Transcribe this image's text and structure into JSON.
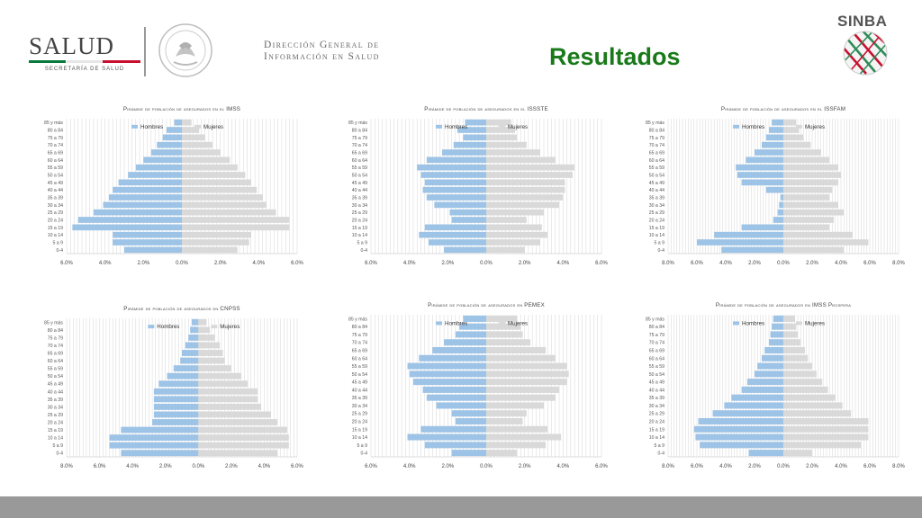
{
  "header": {
    "salud_logo_text": "SALUD",
    "salud_logo_subtext": "SECRETARÍA DE SALUD",
    "dgis_line1": "Dirección General de",
    "dgis_line2": "Información en Salud",
    "page_title": "Resultados",
    "sinba_label": "SINBA"
  },
  "colors": {
    "hombres": "#9dc3e6",
    "mujeres": "#d9d9d9",
    "title_green": "#1a7a1a",
    "footer": "#999999"
  },
  "chart_data": [
    {
      "type": "bar",
      "orientation": "horizontal-pyramid",
      "title": "Pirámide de población de asegurados en el IMSS",
      "categories": [
        "85 y más",
        "80 a 84",
        "75 a 79",
        "70 a 74",
        "65 a 69",
        "60 a 64",
        "55 a 59",
        "50 a 54",
        "45 a 49",
        "40 a 44",
        "35 a 39",
        "30 a 34",
        "25 a 29",
        "20 a 24",
        "15 a 19",
        "10 a 14",
        "5 a 9",
        "0-4"
      ],
      "series": [
        {
          "name": "Hombres",
          "values": [
            0.4,
            0.8,
            1.0,
            1.3,
            1.6,
            2.0,
            2.4,
            2.8,
            3.3,
            3.6,
            3.8,
            4.1,
            4.6,
            5.4,
            5.7,
            3.6,
            3.6,
            3.0
          ]
        },
        {
          "name": "Mujeres",
          "values": [
            0.5,
            0.9,
            1.2,
            1.6,
            2.0,
            2.5,
            2.9,
            3.3,
            3.6,
            3.9,
            4.2,
            4.4,
            4.9,
            5.6,
            5.6,
            3.6,
            3.5,
            2.9
          ]
        }
      ],
      "xlim": [
        -6,
        6
      ],
      "tick_labels": [
        "6.0%",
        "4.0%",
        "2.0%",
        "0.0%",
        "2.0%",
        "4.0%",
        "6.0%"
      ],
      "legend": "top-center"
    },
    {
      "type": "bar",
      "orientation": "horizontal-pyramid",
      "title": "Pirámide de población de asegurados en el ISSSTE",
      "categories": [
        "85 y más",
        "80 a 84",
        "75 a 79",
        "70 a 74",
        "65 a 69",
        "60 a 64",
        "55 a 59",
        "50 a 54",
        "45 a 49",
        "40 a 44",
        "35 a 39",
        "30 a 34",
        "25 a 29",
        "20 a 24",
        "15 a 19",
        "10 a 14",
        "5 a 9",
        "0-4"
      ],
      "series": [
        {
          "name": "Hombres",
          "values": [
            1.1,
            1.5,
            1.2,
            1.7,
            2.3,
            3.1,
            3.6,
            3.4,
            3.2,
            3.3,
            3.1,
            2.7,
            1.9,
            1.8,
            3.2,
            3.5,
            3.0,
            2.2
          ]
        },
        {
          "name": "Mujeres",
          "values": [
            1.3,
            1.5,
            1.6,
            2.1,
            2.8,
            3.6,
            4.6,
            4.5,
            4.1,
            4.1,
            4.0,
            3.8,
            3.0,
            2.1,
            2.9,
            3.2,
            2.8,
            2.0
          ]
        }
      ],
      "xlim": [
        -6,
        6
      ],
      "tick_labels": [
        "6.0%",
        "4.0%",
        "2.0%",
        "0.0%",
        "2.0%",
        "4.0%",
        "6.0%"
      ],
      "legend": "top-center"
    },
    {
      "type": "bar",
      "orientation": "horizontal-pyramid",
      "title": "Pirámide de población de asegurados en el ISSFAM",
      "categories": [
        "85 y más",
        "80 a 84",
        "75 a 79",
        "70 a 74",
        "65 a 69",
        "60 a 64",
        "55 a 59",
        "50 a 54",
        "45 a 49",
        "40 a 44",
        "35 a 39",
        "30 a 34",
        "25 a 29",
        "20 a 24",
        "15 a 19",
        "10 a 14",
        "5 a 9",
        "0-4"
      ],
      "series": [
        {
          "name": "Hombres",
          "values": [
            0.8,
            1.0,
            1.2,
            1.5,
            2.0,
            2.6,
            3.3,
            3.2,
            2.9,
            1.2,
            0.2,
            0.3,
            0.4,
            0.7,
            2.9,
            4.8,
            6.0,
            4.3
          ]
        },
        {
          "name": "Mujeres",
          "values": [
            0.9,
            1.1,
            1.4,
            1.9,
            2.6,
            3.2,
            3.8,
            4.0,
            3.8,
            3.4,
            3.2,
            3.8,
            4.2,
            3.5,
            3.2,
            4.8,
            5.9,
            4.2
          ]
        }
      ],
      "xlim": [
        -8,
        8
      ],
      "tick_labels": [
        "8.0%",
        "6.0%",
        "4.0%",
        "2.0%",
        "0.0%",
        "2.0%",
        "4.0%",
        "6.0%",
        "8.0%"
      ],
      "legend": "top-center"
    },
    {
      "type": "bar",
      "orientation": "horizontal-pyramid",
      "title": "Pirámide de población de asegurados en CNPSS",
      "categories": [
        "85 y más",
        "80 a 84",
        "75 a 79",
        "70 a 74",
        "65 a 69",
        "60 a 64",
        "55 a 59",
        "50 a 54",
        "45 a 49",
        "40 a 44",
        "35 a 39",
        "30 a 34",
        "25 a 29",
        "20 a 24",
        "15 a 19",
        "10 a 14",
        "5 a 9",
        "0-4"
      ],
      "series": [
        {
          "name": "Hombres",
          "values": [
            0.4,
            0.5,
            0.6,
            0.8,
            1.0,
            1.1,
            1.5,
            1.9,
            2.4,
            2.7,
            2.7,
            2.7,
            2.7,
            2.8,
            4.7,
            5.4,
            5.4,
            4.7
          ]
        },
        {
          "name": "Mujeres",
          "values": [
            0.5,
            0.7,
            1.0,
            1.3,
            1.5,
            1.6,
            2.0,
            2.6,
            3.0,
            3.6,
            3.6,
            3.8,
            4.4,
            4.8,
            5.4,
            5.5,
            5.5,
            4.8
          ]
        }
      ],
      "xlim": [
        -8,
        6
      ],
      "tick_labels": [
        "8.0%",
        "6.0%",
        "4.0%",
        "2.0%",
        "0.0%",
        "2.0%",
        "4.0%",
        "6.0%"
      ],
      "legend": "top-center"
    },
    {
      "type": "bar",
      "orientation": "horizontal-pyramid",
      "title": "Pirámide de población de asegurados en PEMEX",
      "categories": [
        "85 y más",
        "80 a 84",
        "75 a 79",
        "70 a 74",
        "65 a 69",
        "60 a 64",
        "55 a 59",
        "50 a 54",
        "45 a 49",
        "40 a 44",
        "35 a 39",
        "30 a 34",
        "25 a 29",
        "20 a 24",
        "15 a 19",
        "10 a 14",
        "5 a 9",
        "0-4"
      ],
      "series": [
        {
          "name": "Hombres",
          "values": [
            1.2,
            1.4,
            1.6,
            2.2,
            2.8,
            3.5,
            4.1,
            4.0,
            3.8,
            3.3,
            3.1,
            2.6,
            1.8,
            1.6,
            3.4,
            4.1,
            3.2,
            1.8
          ]
        },
        {
          "name": "Mujeres",
          "values": [
            1.6,
            1.8,
            1.9,
            2.3,
            3.1,
            3.6,
            4.2,
            4.3,
            4.2,
            3.8,
            3.6,
            3.0,
            2.1,
            1.9,
            3.2,
            3.9,
            3.1,
            1.6
          ]
        }
      ],
      "xlim": [
        -6,
        6
      ],
      "tick_labels": [
        "6.0%",
        "4.0%",
        "2.0%",
        "0.0%",
        "2.0%",
        "4.0%",
        "6.0%"
      ],
      "legend": "top-center"
    },
    {
      "type": "bar",
      "orientation": "horizontal-pyramid",
      "title": "Pirámide de población de asegurados en IMSS Prospera",
      "categories": [
        "85 y más",
        "80 a 84",
        "75 a 79",
        "70 a 74",
        "65 a 69",
        "60 a 64",
        "55 a 59",
        "50 a 54",
        "45 a 49",
        "40 a 44",
        "35 a 39",
        "30 a 34",
        "25 a 29",
        "20 a 24",
        "15 a 19",
        "10 a 14",
        "5 a 9",
        "0-4"
      ],
      "series": [
        {
          "name": "Hombres",
          "values": [
            0.7,
            0.8,
            0.9,
            1.0,
            1.3,
            1.5,
            1.8,
            2.0,
            2.5,
            2.9,
            3.6,
            4.1,
            4.9,
            5.9,
            6.2,
            6.1,
            5.8,
            2.4
          ]
        },
        {
          "name": "Mujeres",
          "values": [
            0.8,
            0.9,
            1.0,
            1.2,
            1.5,
            1.7,
            2.0,
            2.3,
            2.7,
            3.1,
            3.6,
            4.1,
            4.7,
            5.9,
            5.9,
            5.9,
            5.4,
            2.0
          ]
        }
      ],
      "xlim": [
        -8,
        8
      ],
      "tick_labels": [
        "8.0%",
        "6.0%",
        "4.0%",
        "2.0%",
        "0.0%",
        "2.0%",
        "4.0%",
        "6.0%",
        "8.0%"
      ],
      "legend": "top-center"
    }
  ]
}
